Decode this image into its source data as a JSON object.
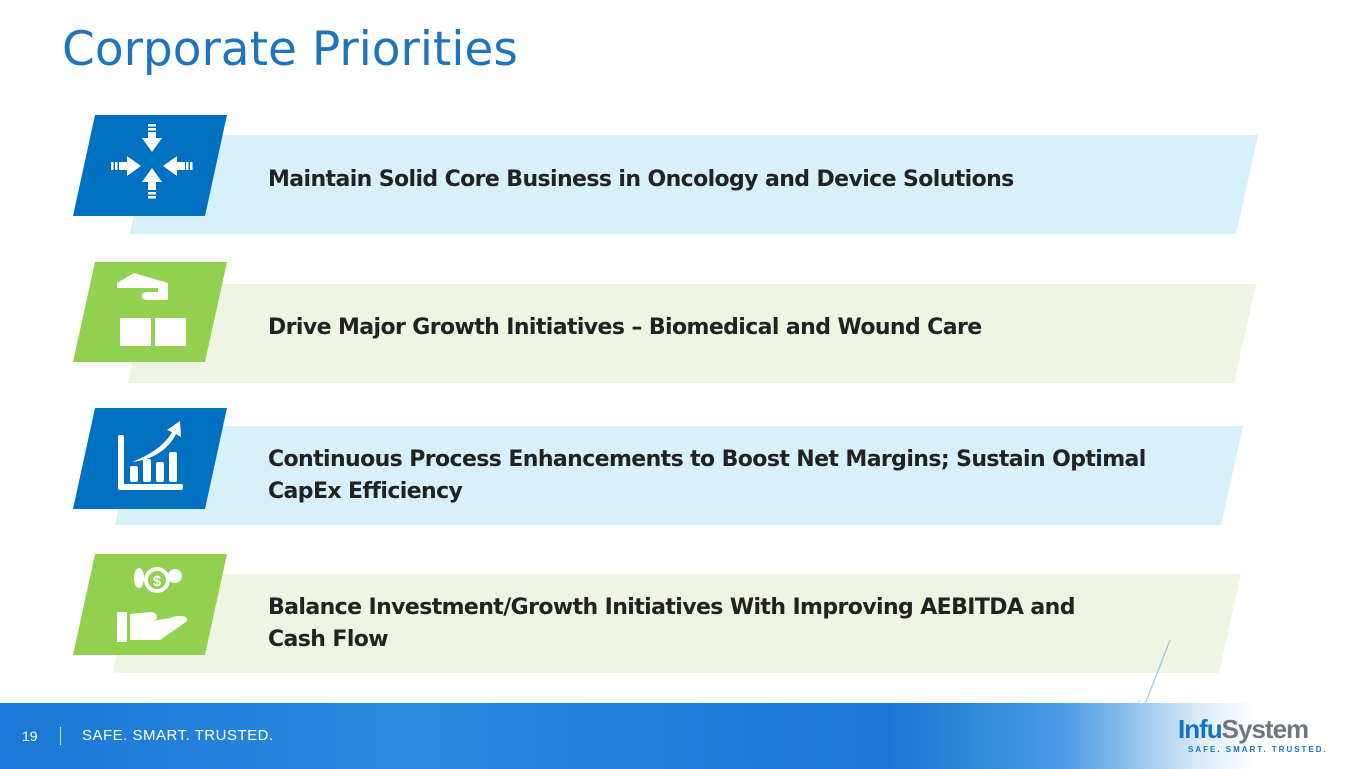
{
  "title": "Corporate Priorities",
  "colors": {
    "blue": "#0070C0",
    "green": "#92D050",
    "light_blue": "#D6F1FA",
    "light_green": "#EEF6E3",
    "title": "#1F74BD"
  },
  "priorities": [
    {
      "text": "Maintain Solid Core Business in Oncology and Device Solutions",
      "icon": "arrows-converge-icon",
      "color": "blue"
    },
    {
      "text": "Drive Major Growth Initiatives – Biomedical and Wound Care",
      "icon": "hand-boxes-icon",
      "color": "green"
    },
    {
      "text_line1": "Continuous Process Enhancements to Boost Net Margins; Sustain Optimal",
      "text_line2": "CapEx Efficiency",
      "icon": "growth-chart-icon",
      "color": "blue"
    },
    {
      "text_line1": "Balance Investment/Growth Initiatives With Improving AEBITDA and",
      "text_line2": "Cash Flow",
      "icon": "hand-money-icon",
      "color": "green"
    }
  ],
  "footer": {
    "page_number": "19",
    "tagline": "SAFE. SMART. TRUSTED."
  },
  "logo": {
    "name_part1": "Infu",
    "name_part2": "System",
    "slogan": "SAFE. SMART. TRUSTED."
  }
}
